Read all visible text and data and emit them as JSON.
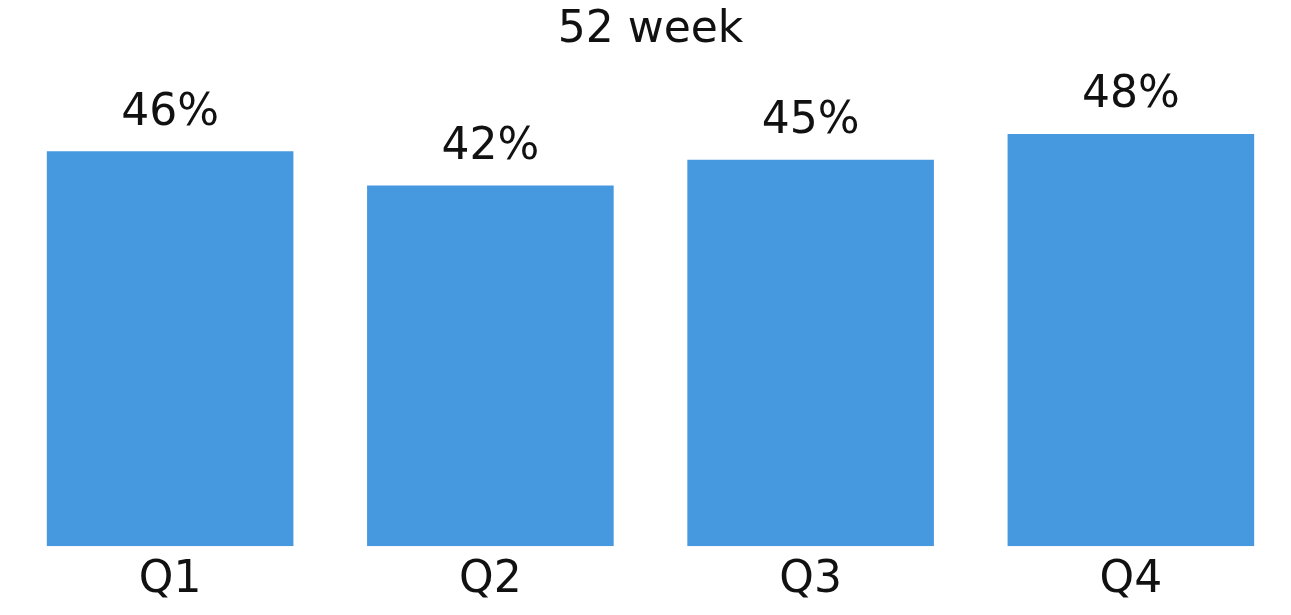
{
  "chart_data": {
    "type": "bar",
    "title": "52 week",
    "categories": [
      "Q1",
      "Q2",
      "Q3",
      "Q4"
    ],
    "values": [
      46,
      42,
      45,
      48
    ],
    "color": "#4698df",
    "value_labels": [
      "46%",
      "42%",
      "45%",
      "48%"
    ],
    "tick_labels": "x",
    "grid": false,
    "legend": false
  }
}
